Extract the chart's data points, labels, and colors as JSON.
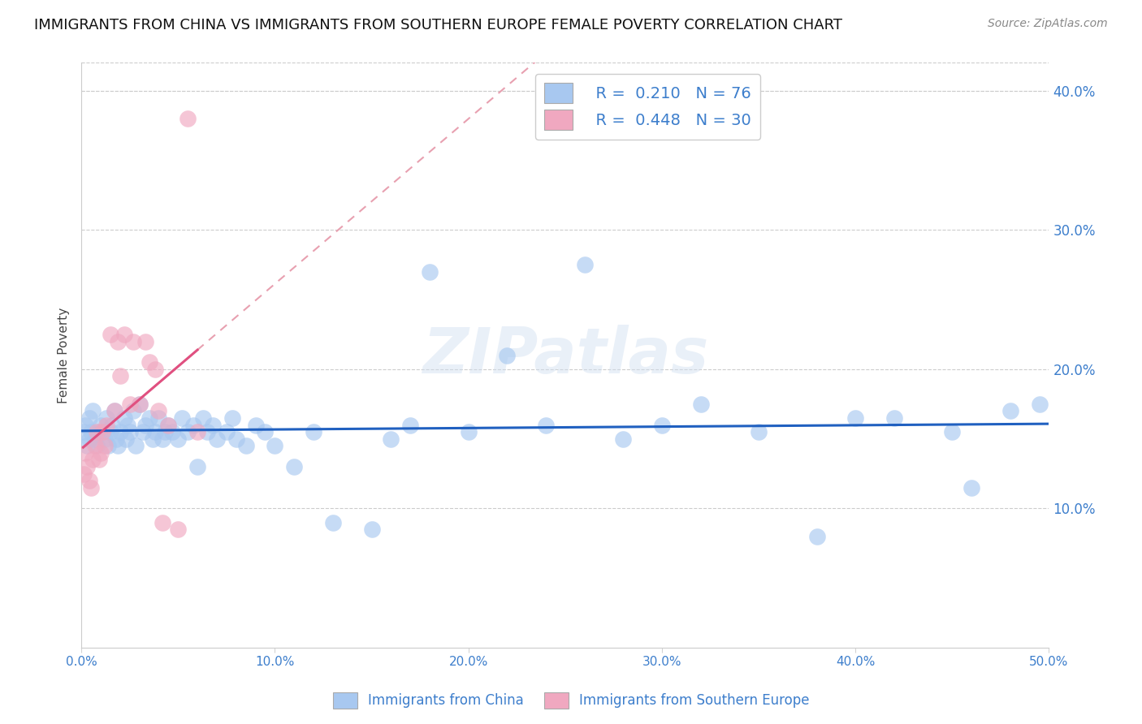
{
  "title": "IMMIGRANTS FROM CHINA VS IMMIGRANTS FROM SOUTHERN EUROPE FEMALE POVERTY CORRELATION CHART",
  "source": "Source: ZipAtlas.com",
  "ylabel": "Female Poverty",
  "xlim": [
    0.0,
    0.5
  ],
  "ylim": [
    0.0,
    0.42
  ],
  "xticks": [
    0.0,
    0.1,
    0.2,
    0.3,
    0.4,
    0.5
  ],
  "yticks_right": [
    0.1,
    0.2,
    0.3,
    0.4
  ],
  "xtick_labels": [
    "0.0%",
    "10.0%",
    "20.0%",
    "30.0%",
    "40.0%",
    "50.0%"
  ],
  "ytick_labels_right": [
    "10.0%",
    "20.0%",
    "30.0%",
    "40.0%"
  ],
  "china_R": 0.21,
  "china_N": 76,
  "southern_R": 0.448,
  "southern_N": 30,
  "china_color": "#a8c8f0",
  "southern_color": "#f0a8c0",
  "china_line_color": "#2060c0",
  "southern_line_color": "#e05080",
  "southern_line_dashed_color": "#e8a0b0",
  "watermark_text": "ZIPatlas",
  "china_scatter_x": [
    0.001,
    0.002,
    0.003,
    0.004,
    0.004,
    0.005,
    0.006,
    0.007,
    0.008,
    0.009,
    0.01,
    0.011,
    0.012,
    0.013,
    0.014,
    0.015,
    0.016,
    0.017,
    0.018,
    0.019,
    0.02,
    0.022,
    0.023,
    0.024,
    0.025,
    0.027,
    0.028,
    0.03,
    0.032,
    0.033,
    0.035,
    0.037,
    0.038,
    0.04,
    0.042,
    0.043,
    0.045,
    0.047,
    0.05,
    0.052,
    0.055,
    0.058,
    0.06,
    0.063,
    0.065,
    0.068,
    0.07,
    0.075,
    0.078,
    0.08,
    0.085,
    0.09,
    0.095,
    0.1,
    0.11,
    0.12,
    0.13,
    0.15,
    0.16,
    0.17,
    0.18,
    0.2,
    0.22,
    0.24,
    0.26,
    0.28,
    0.3,
    0.32,
    0.35,
    0.38,
    0.4,
    0.42,
    0.45,
    0.46,
    0.48,
    0.495
  ],
  "china_scatter_y": [
    0.155,
    0.16,
    0.145,
    0.15,
    0.165,
    0.155,
    0.17,
    0.15,
    0.145,
    0.155,
    0.16,
    0.155,
    0.15,
    0.165,
    0.145,
    0.155,
    0.16,
    0.17,
    0.15,
    0.145,
    0.155,
    0.165,
    0.15,
    0.16,
    0.155,
    0.17,
    0.145,
    0.175,
    0.155,
    0.16,
    0.165,
    0.15,
    0.155,
    0.165,
    0.15,
    0.155,
    0.16,
    0.155,
    0.15,
    0.165,
    0.155,
    0.16,
    0.13,
    0.165,
    0.155,
    0.16,
    0.15,
    0.155,
    0.165,
    0.15,
    0.145,
    0.16,
    0.155,
    0.145,
    0.13,
    0.155,
    0.09,
    0.085,
    0.15,
    0.16,
    0.27,
    0.155,
    0.21,
    0.16,
    0.275,
    0.15,
    0.16,
    0.175,
    0.155,
    0.08,
    0.165,
    0.165,
    0.155,
    0.115,
    0.17,
    0.175
  ],
  "southern_scatter_x": [
    0.001,
    0.002,
    0.003,
    0.004,
    0.005,
    0.006,
    0.007,
    0.008,
    0.009,
    0.01,
    0.011,
    0.012,
    0.013,
    0.015,
    0.017,
    0.019,
    0.02,
    0.022,
    0.025,
    0.027,
    0.03,
    0.033,
    0.035,
    0.038,
    0.04,
    0.042,
    0.045,
    0.05,
    0.055,
    0.06
  ],
  "southern_scatter_y": [
    0.125,
    0.14,
    0.13,
    0.12,
    0.115,
    0.135,
    0.145,
    0.155,
    0.135,
    0.14,
    0.155,
    0.145,
    0.16,
    0.225,
    0.17,
    0.22,
    0.195,
    0.225,
    0.175,
    0.22,
    0.175,
    0.22,
    0.205,
    0.2,
    0.17,
    0.09,
    0.16,
    0.085,
    0.38,
    0.155
  ]
}
